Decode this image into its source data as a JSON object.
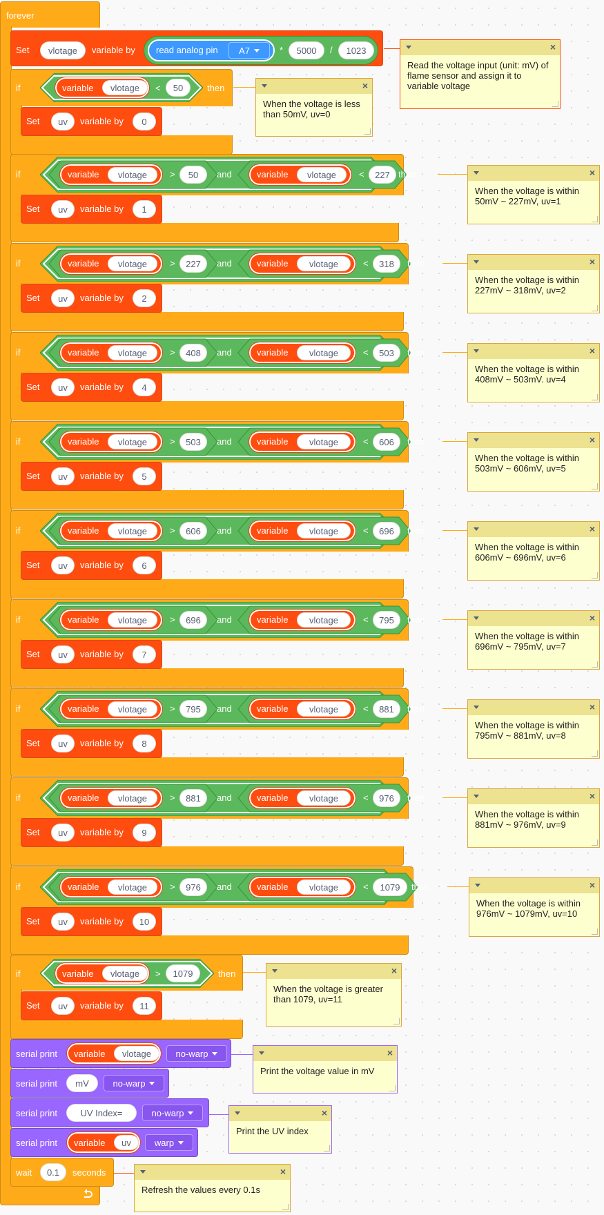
{
  "palette": {
    "control": "#ffab19",
    "variable": "#ff4d0f",
    "operator": "#5cb85c",
    "sensor": "#3d98ff",
    "serial": "#9966ff",
    "comment_bg": "#feffcf",
    "comment_header": "#ece28f"
  },
  "labels": {
    "forever": "forever",
    "set": "Set",
    "variable_by": "variable by",
    "if": "if",
    "then": "then",
    "and": "and",
    "variable": "variable",
    "serial_print": "serial print",
    "wait": "wait",
    "seconds": "seconds",
    "lt": "<",
    "gt": ">",
    "times": "*",
    "divide": "/"
  },
  "first": {
    "var": "vlotage",
    "read": "read analog pin",
    "pin": "A7",
    "mul": "5000",
    "div": "1023"
  },
  "if1": {
    "var": "vlotage",
    "val": "50",
    "set_var": "uv",
    "set_val": "0"
  },
  "ranges": [
    {
      "var_a": "vlotage",
      "low": "50",
      "var_b": "vlotage",
      "high": "227",
      "set_var": "uv",
      "set_val": "1"
    },
    {
      "var_a": "vlotage",
      "low": "227",
      "var_b": "vlotage",
      "high": "318",
      "set_var": "uv",
      "set_val": "2"
    },
    {
      "var_a": "vlotage",
      "low": "408",
      "var_b": "vlotage",
      "high": "503",
      "set_var": "uv",
      "set_val": "4"
    },
    {
      "var_a": "vlotage",
      "low": "503",
      "var_b": "vlotage",
      "high": "606",
      "set_var": "uv",
      "set_val": "5"
    },
    {
      "var_a": "vlotage",
      "low": "606",
      "var_b": "vlotage",
      "high": "696",
      "set_var": "uv",
      "set_val": "6"
    },
    {
      "var_a": "vlotage",
      "low": "696",
      "var_b": "vlotage",
      "high": "795",
      "set_var": "uv",
      "set_val": "7"
    },
    {
      "var_a": "vlotage",
      "low": "795",
      "var_b": "vlotage",
      "high": "881",
      "set_var": "uv",
      "set_val": "8"
    },
    {
      "var_a": "vlotage",
      "low": "881",
      "var_b": "vlotage",
      "high": "976",
      "set_var": "uv",
      "set_val": "9"
    },
    {
      "var_a": "vlotage",
      "low": "976",
      "var_b": "vlotage",
      "high": "1079",
      "set_var": "uv",
      "set_val": "10"
    }
  ],
  "if_last": {
    "var": "vlotage",
    "val": "1079",
    "set_var": "uv",
    "set_val": "11"
  },
  "serial": [
    {
      "kind": "var",
      "value": "vlotage",
      "mode": "no-warp"
    },
    {
      "kind": "text",
      "value": "mV",
      "mode": "no-warp"
    },
    {
      "kind": "text",
      "value": "UV Index=",
      "mode": "no-warp"
    },
    {
      "kind": "var",
      "value": "uv",
      "mode": "warp"
    }
  ],
  "wait": {
    "value": "0.1"
  },
  "comments": [
    "Read the voltage input (unit: mV) of flame sensor and assign it to variable voltage",
    "When the voltage is less than 50mV, uv=0",
    "When the voltage is within 50mV ~ 227mV, uv=1",
    "When the voltage is within 227mV ~ 318mV, uv=2",
    "When the voltage is within 408mV ~ 503mV. uv=4",
    "When the voltage is within 503mV ~ 606mV, uv=5",
    "When the voltage is within 606mV ~ 696mV, uv=6",
    "When the voltage is within 696mV ~ 795mV, uv=7",
    "When the voltage is within 795mV ~ 881mV, uv=8",
    "When the voltage is within 881mV ~ 976mV, uv=9",
    "When the voltage is within 976mV ~ 1079mV, uv=10",
    "When the voltage is greater than 1079, uv=11",
    "Print the voltage value in mV",
    "Print the UV index",
    "Refresh the values every 0.1s"
  ],
  "icons": {
    "comment_toggle": "caret-down-icon",
    "comment_close": "close-icon",
    "loop_arrow": "loop-arrow-icon",
    "dropdown": "caret-down-icon"
  }
}
